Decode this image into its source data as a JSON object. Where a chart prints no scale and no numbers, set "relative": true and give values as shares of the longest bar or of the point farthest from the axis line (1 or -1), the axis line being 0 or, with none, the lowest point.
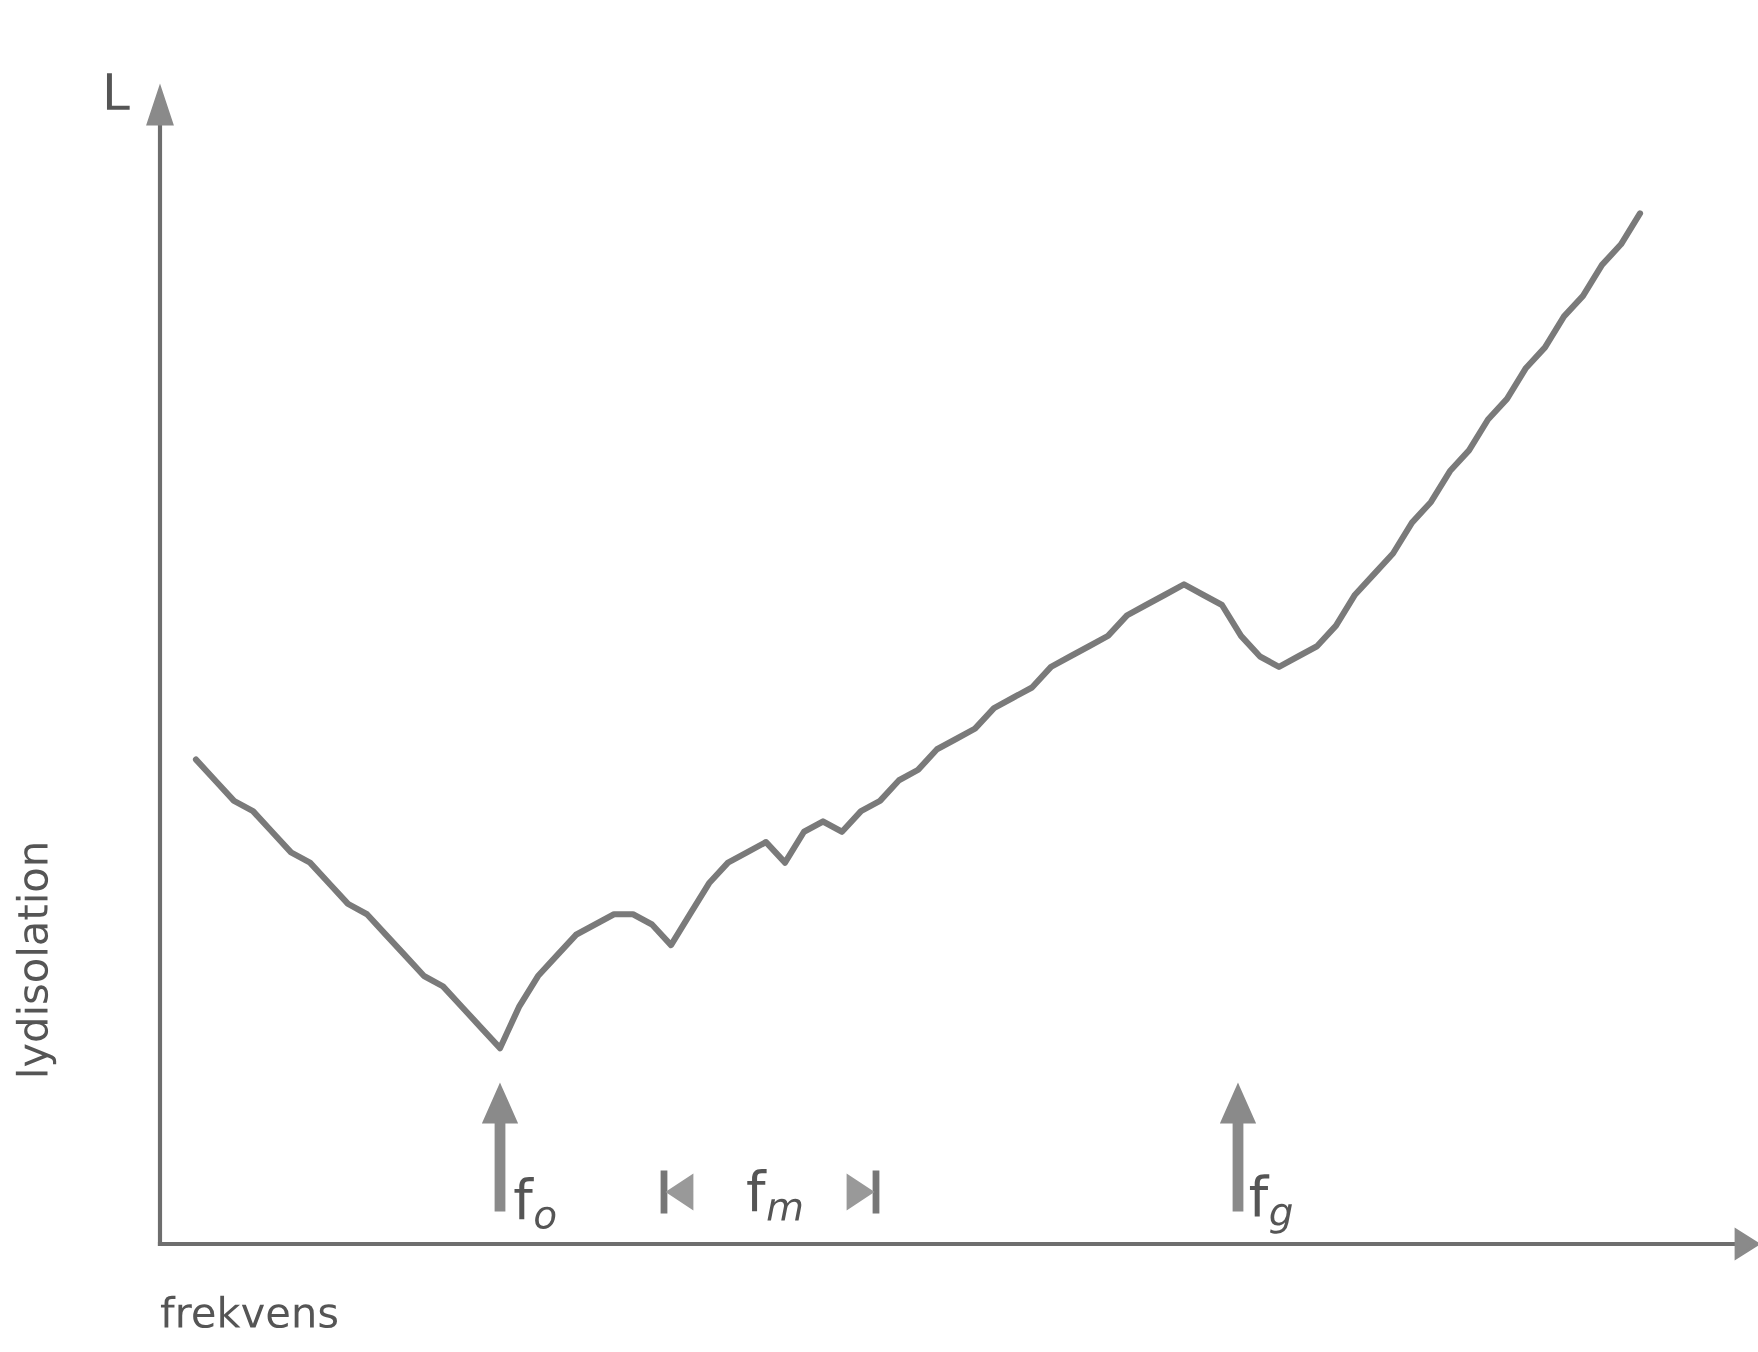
{
  "chart_data": {
    "type": "line",
    "relative": true,
    "xlabel": "frekvens",
    "ylabel": "lydisolation",
    "annotations": [
      "L",
      "f$_{o}$",
      "f$_{m}$",
      "f$_{g}$"
    ],
    "categories": [
      null,
      null,
      null,
      null,
      null,
      null,
      null,
      null,
      null,
      null,
      null,
      null,
      null,
      null,
      null,
      null,
      null,
      null,
      null,
      null,
      null,
      null,
      null,
      null,
      null,
      null,
      null,
      null,
      null,
      null,
      null,
      null,
      null,
      null,
      null,
      null,
      null,
      null,
      null,
      null,
      null,
      null,
      null,
      null,
      null,
      null,
      null,
      null,
      null,
      null,
      null,
      null,
      null,
      null,
      null,
      null,
      null,
      null,
      null,
      null,
      null,
      null,
      null,
      null,
      null,
      null,
      null,
      null,
      null,
      null,
      null,
      null,
      null,
      null,
      null,
      null,
      null
    ],
    "tick_labels": false,
    "legend": false,
    "marker": "none",
    "line_style": "solid",
    "series": [
      {
        "color": "#7a7a7a",
        "values": [
          0.47,
          0.45,
          0.43,
          0.42,
          0.4,
          0.38,
          0.37,
          0.35,
          0.33,
          0.32,
          0.3,
          0.28,
          0.26,
          0.25,
          0.23,
          0.21,
          0.19,
          0.23,
          0.26,
          0.28,
          0.3,
          0.31,
          0.32,
          0.32,
          0.31,
          0.29,
          0.32,
          0.35,
          0.37,
          0.38,
          0.39,
          0.37,
          0.4,
          0.41,
          0.4,
          0.42,
          0.43,
          0.45,
          0.46,
          0.48,
          0.49,
          0.5,
          0.52,
          0.53,
          0.54,
          0.56,
          0.57,
          0.58,
          0.59,
          0.61,
          0.62,
          0.63,
          0.64,
          0.63,
          0.62,
          0.59,
          0.57,
          0.56,
          0.57,
          0.58,
          0.6,
          0.63,
          0.65,
          0.67,
          0.7,
          0.72,
          0.75,
          0.77,
          0.8,
          0.82,
          0.85,
          0.87,
          0.9,
          0.92,
          0.95,
          0.97,
          1.0
        ]
      }
    ]
  }
}
